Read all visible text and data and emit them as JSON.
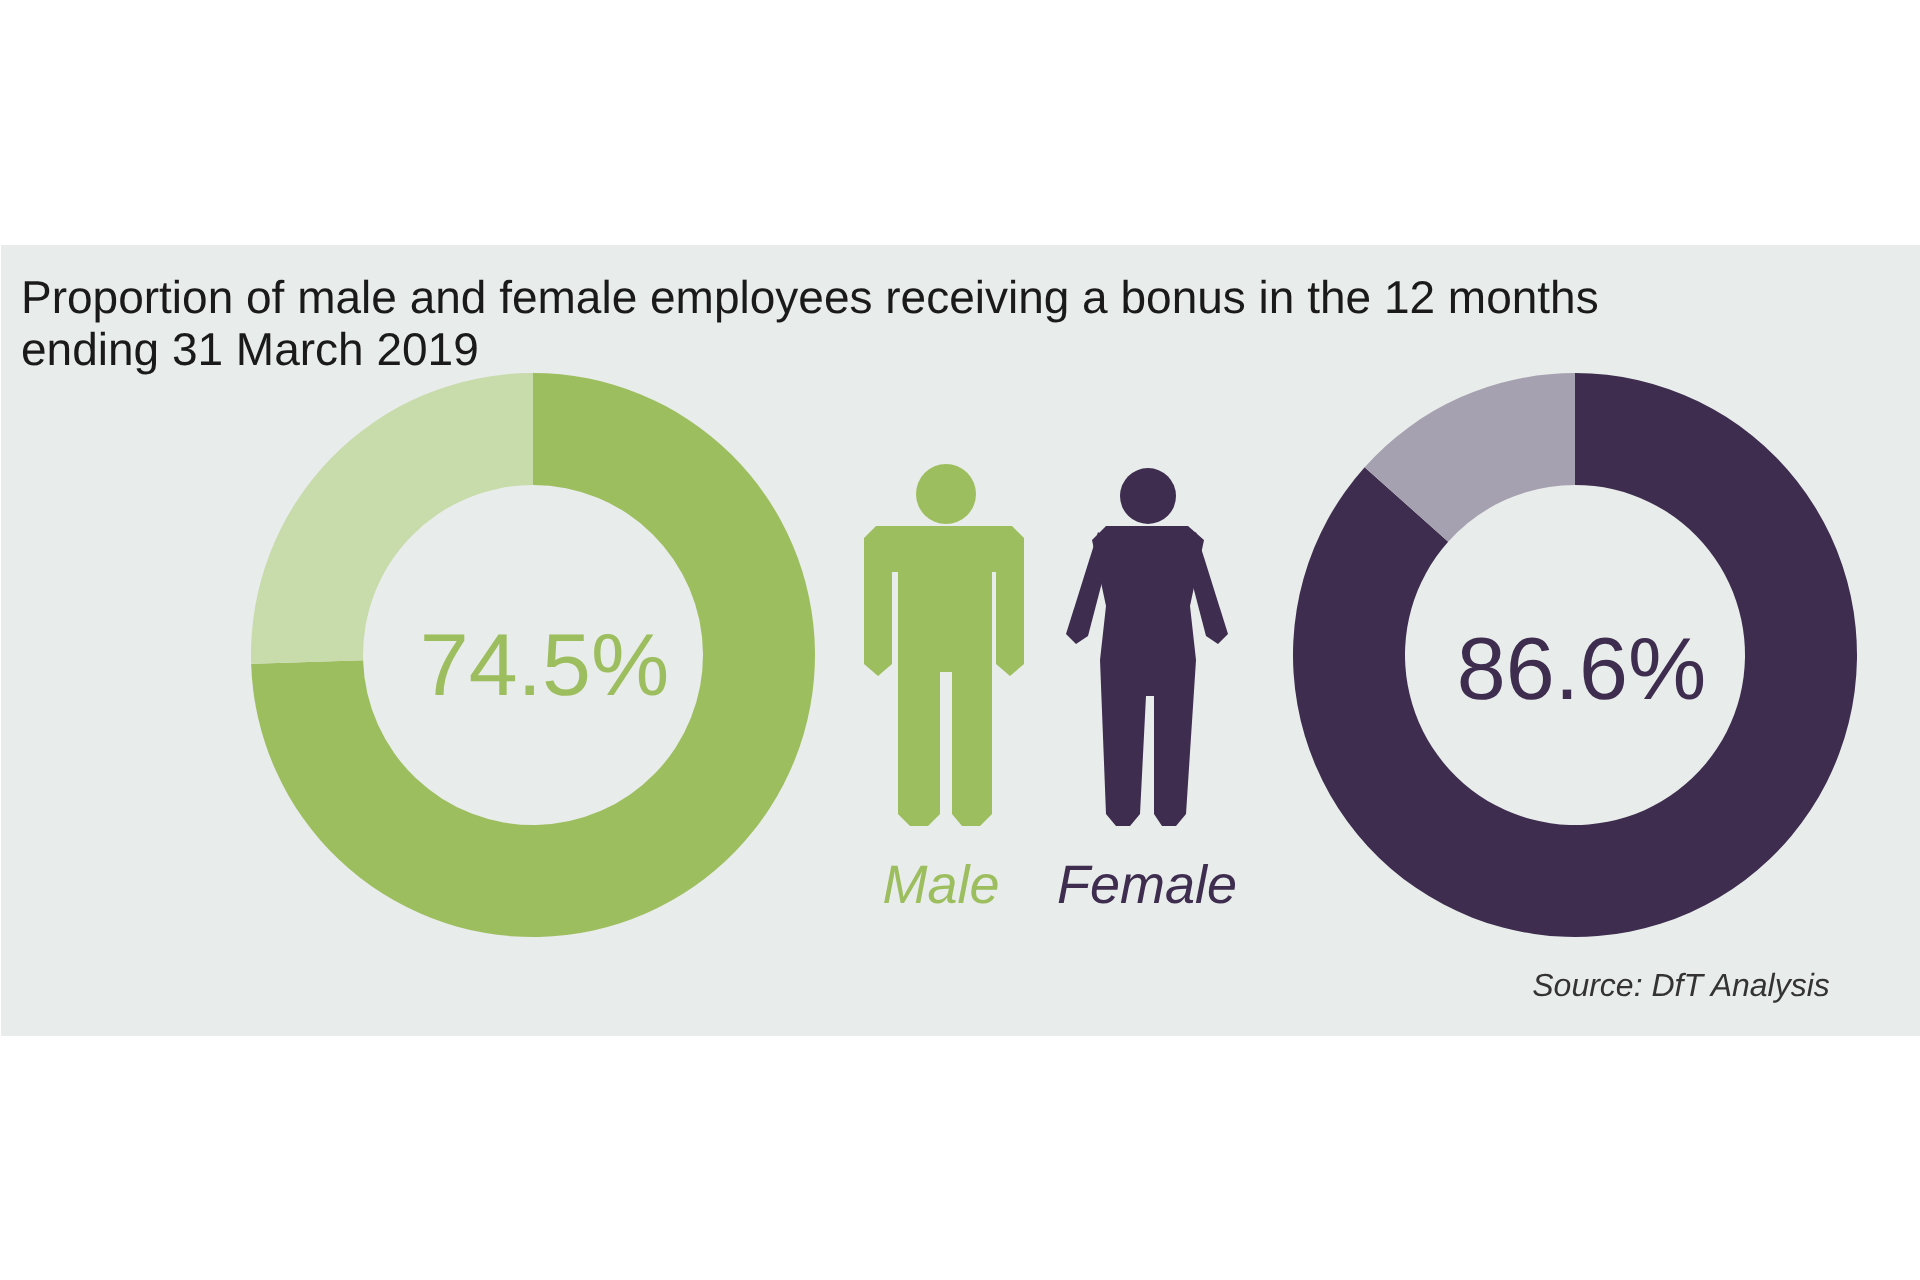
{
  "chart_data": {
    "type": "donut",
    "title": "Proportion of male and female employees receiving a bonus in the 12 months ending 31 March 2019",
    "categories": [
      null,
      null
    ],
    "series": [
      {
        "name": "Male",
        "values": [
          74.5,
          25.5
        ],
        "colors": [
          "#9dbe5f",
          "#c8dbab"
        ],
        "value_labels": [
          "74.5%",
          null
        ]
      },
      {
        "name": "Female",
        "values": [
          86.6,
          13.4
        ],
        "colors": [
          "#3e2d4f",
          "#a6a1b0"
        ],
        "value_labels": [
          "86.6%",
          null
        ]
      }
    ],
    "annotations": [
      "Source: DfT Analysis"
    ]
  }
}
